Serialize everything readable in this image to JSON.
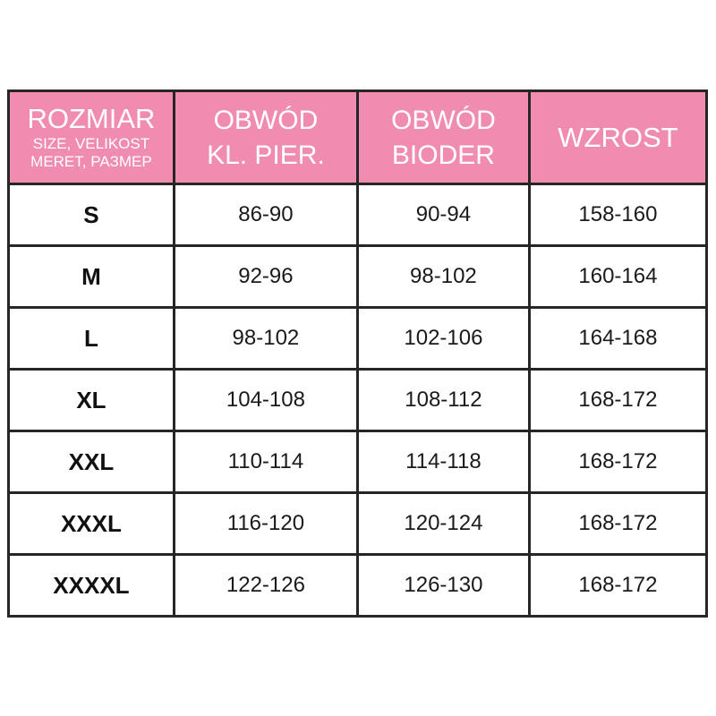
{
  "colors": {
    "header_bg": "#F08CAF",
    "header_text": "#FFFFFF",
    "border": "#262626",
    "cell_text": "#1A1A1A",
    "background": "#FFFFFF"
  },
  "headers": {
    "col1": {
      "title": "ROZMIAR",
      "sub1": "SIZE, VELIKOST",
      "sub2": "MERET, РАЗМЕР"
    },
    "col2": {
      "line1": "OBWÓD",
      "line2": "KL. PIER."
    },
    "col3": {
      "line1": "OBWÓD",
      "line2": "BIODER"
    },
    "col4": {
      "title": "WZROST"
    }
  },
  "chart_data": {
    "type": "table",
    "title": "Size chart (clothing measurements in cm)",
    "columns": [
      "ROZMIAR / SIZE, VELIKOST / MERET, РАЗМЕР",
      "OBWÓD KL. PIER.",
      "OBWÓD BIODER",
      "WZROST"
    ],
    "rows": [
      [
        "S",
        "86-90",
        "90-94",
        "158-160"
      ],
      [
        "M",
        "92-96",
        "98-102",
        "160-164"
      ],
      [
        "L",
        "98-102",
        "102-106",
        "164-168"
      ],
      [
        "XL",
        "104-108",
        "108-112",
        "168-172"
      ],
      [
        "XXL",
        "110-114",
        "114-118",
        "168-172"
      ],
      [
        "XXXL",
        "116-120",
        "120-124",
        "168-172"
      ],
      [
        "XXXXL",
        "122-126",
        "126-130",
        "168-172"
      ]
    ]
  }
}
